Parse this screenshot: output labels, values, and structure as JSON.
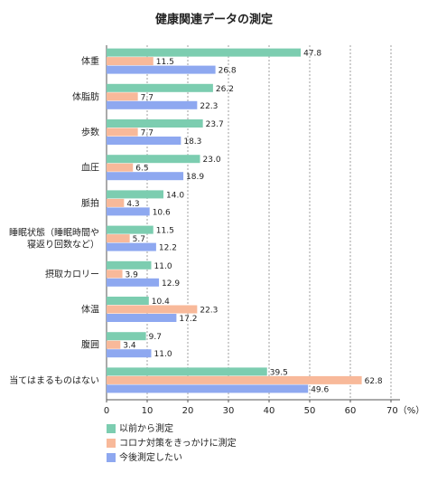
{
  "chart_data": {
    "type": "bar",
    "orientation": "horizontal",
    "title": "健康関連データの測定",
    "categories": [
      "体重",
      "体脂肪",
      "歩数",
      "血圧",
      "脈拍",
      "睡眠状態（睡眠時間や\n寝返り回数など）",
      "摂取カロリー",
      "体温",
      "腹囲",
      "当てはまるものはない"
    ],
    "series": [
      {
        "name": "以前から測定",
        "color": "#7ccdb0",
        "values": [
          47.8,
          26.2,
          23.7,
          23.0,
          14.0,
          11.5,
          11.0,
          10.4,
          9.7,
          39.5
        ],
        "value_labels": [
          "47.8",
          "26.2",
          "23.7",
          "23.0",
          "14.0",
          "11.5",
          "11.0",
          "10.4",
          "9.7",
          "39.5"
        ]
      },
      {
        "name": "コロナ対策をきっかけに測定",
        "color": "#f8b99a",
        "values": [
          11.5,
          7.7,
          7.7,
          6.5,
          4.3,
          5.7,
          3.9,
          22.3,
          3.4,
          62.8
        ],
        "value_labels": [
          "11.5",
          "7.7",
          "7.7",
          "6.5",
          "4.3",
          "5.7",
          "3.9",
          "22.3",
          "3.4",
          "62.8"
        ]
      },
      {
        "name": "今後測定したい",
        "color": "#8ea8f0",
        "values": [
          26.8,
          22.3,
          18.3,
          18.9,
          10.6,
          12.2,
          12.9,
          17.2,
          11.0,
          49.6
        ],
        "value_labels": [
          "26.8",
          "22.3",
          "18.3",
          "18.9",
          "10.6",
          "12.2",
          "12.9",
          "17.2",
          "11.0",
          "49.6"
        ]
      }
    ],
    "xlim": [
      0,
      70
    ],
    "xticks": [
      0,
      10,
      20,
      30,
      40,
      50,
      60,
      {
        "value": 70,
        "label": "70（%）"
      }
    ],
    "grid": true,
    "legend": "bottom-left"
  }
}
